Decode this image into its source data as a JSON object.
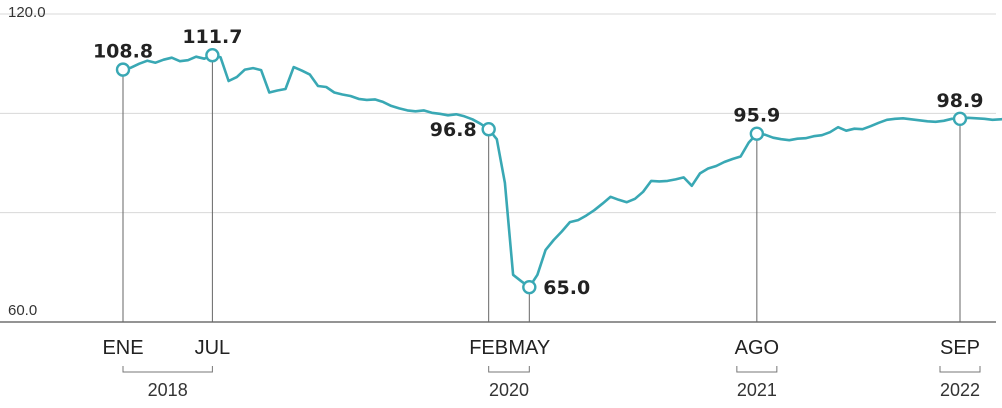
{
  "chart_data": {
    "type": "line",
    "title": "",
    "xlabel": "",
    "ylabel": "",
    "ylim": [
      60,
      120
    ],
    "y_tick_labels": [
      "120.0",
      "60.0"
    ],
    "y_ticks": [
      120,
      60
    ],
    "grid": true,
    "colors": {
      "line": "#39a8b4",
      "axis": "#555555",
      "grid": "#d8d8d8",
      "text": "#222222"
    },
    "series": [
      {
        "x": [
          0,
          0.5,
          1,
          1.5,
          2,
          2.5,
          3,
          3.5,
          4,
          4.5,
          5,
          5.5,
          6,
          6.5,
          7,
          7.5,
          8,
          8.5,
          9,
          9.5,
          10,
          10.5,
          11,
          11.5,
          12,
          12.5,
          13,
          13.5,
          14,
          14.5,
          15,
          15.5,
          16,
          16.5,
          17,
          17.5,
          18,
          18.5,
          19,
          19.5,
          20,
          20.5,
          21,
          21.5,
          22,
          22.5,
          23,
          23.5,
          24,
          24.5,
          25,
          25.5,
          26,
          26.5,
          27,
          27.5,
          28,
          28.5,
          29,
          29.5,
          30,
          30.5,
          31,
          31.5,
          32,
          32.5,
          33,
          33.5,
          34,
          34.5,
          35,
          35.5,
          36,
          36.5,
          37,
          37.5,
          38,
          38.5,
          39,
          39.5,
          40,
          40.5,
          41,
          41.5,
          42,
          42.5,
          43,
          43.5,
          44,
          44.5,
          45,
          45.5,
          46,
          46.5,
          47,
          47.5,
          48,
          48.5,
          49,
          49.5,
          50,
          50.5,
          51,
          51.5,
          52,
          52.5,
          53,
          53.5,
          54,
          54.5,
          55,
          55.5,
          56,
          56.5
        ],
        "values": [
          108.8,
          109.2,
          110.0,
          110.6,
          110.2,
          110.8,
          111.2,
          110.5,
          110.7,
          111.4,
          111.0,
          111.7,
          111.3,
          106.5,
          107.3,
          108.8,
          109.1,
          108.7,
          104.2,
          104.6,
          104.9,
          109.3,
          108.6,
          107.8,
          105.5,
          105.3,
          104.2,
          103.8,
          103.5,
          102.9,
          102.7,
          102.8,
          102.3,
          101.5,
          101.0,
          100.6,
          100.4,
          100.6,
          100.1,
          99.9,
          99.6,
          99.8,
          99.4,
          98.8,
          97.9,
          96.8,
          94.8,
          86.0,
          67.5,
          66.2,
          65.0,
          67.5,
          72.5,
          74.5,
          76.2,
          78.1,
          78.5,
          79.4,
          80.5,
          81.8,
          83.2,
          82.6,
          82.1,
          82.8,
          84.2,
          86.4,
          86.3,
          86.4,
          86.7,
          87.1,
          85.4,
          87.9,
          88.9,
          89.4,
          90.2,
          90.8,
          91.3,
          94.1,
          95.9,
          95.7,
          95.1,
          94.8,
          94.6,
          94.9,
          95.0,
          95.4,
          95.6,
          96.2,
          97.2,
          96.5,
          96.9,
          96.8,
          97.4,
          98.1,
          98.7,
          98.9,
          99.0,
          98.8,
          98.6,
          98.4,
          98.3,
          98.5,
          98.9,
          98.9,
          99.1,
          99.0,
          98.9,
          98.7,
          98.8,
          98.9,
          98.8,
          98.7,
          98.8,
          98.9
        ]
      }
    ],
    "annotations": [
      {
        "label": "108.8",
        "x": 0,
        "y": 108.8,
        "position": "above"
      },
      {
        "label": "111.7",
        "x": 5.5,
        "y": 111.7,
        "position": "above"
      },
      {
        "label": "96.8",
        "x": 22.5,
        "y": 96.8,
        "position": "left"
      },
      {
        "label": "65.0",
        "x": 25,
        "y": 65.0,
        "position": "right"
      },
      {
        "label": "95.9",
        "x": 39,
        "y": 95.9,
        "position": "above"
      },
      {
        "label": "98.9",
        "x": 51.5,
        "y": 98.9,
        "position": "above"
      }
    ],
    "categories": [
      {
        "label": "ENE",
        "x": 0
      },
      {
        "label": "JUL",
        "x": 5.5
      },
      {
        "label": "FEB",
        "x": 22.5
      },
      {
        "label": "MAY",
        "x": 25
      },
      {
        "label": "AGO",
        "x": 39
      },
      {
        "label": "SEP",
        "x": 51.5
      }
    ],
    "year_groups": [
      {
        "label": "2018",
        "from": 0,
        "to": 5.5
      },
      {
        "label": "2020",
        "from": 22.5,
        "to": 25
      },
      {
        "label": "2021",
        "from": 39,
        "to": 39
      },
      {
        "label": "2022",
        "from": 51.5,
        "to": 51.5
      }
    ]
  }
}
